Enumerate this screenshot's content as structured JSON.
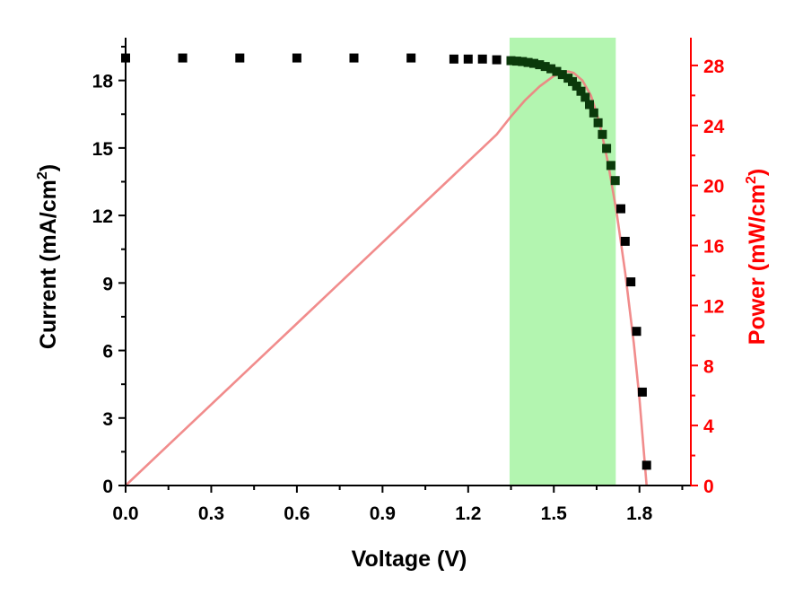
{
  "chart_data": {
    "type": "scatter",
    "xlabel": "Voltage (V)",
    "ylabel": {
      "main": "Current (mA/cm",
      "sup": "2",
      "close": ")"
    },
    "y2label": {
      "main": "Power (mW/cm",
      "sup": "2",
      "close": ")"
    },
    "xlim": [
      0,
      1.98
    ],
    "ylim": [
      0,
      19.9
    ],
    "y2lim": [
      0,
      29.85
    ],
    "xticks": [
      "0.0",
      "0.3",
      "0.6",
      "0.9",
      "1.2",
      "1.5",
      "1.8"
    ],
    "yticks": [
      "0",
      "3",
      "6",
      "9",
      "12",
      "15",
      "18"
    ],
    "y2ticks": [
      "0",
      "4",
      "8",
      "12",
      "16",
      "20",
      "24",
      "28"
    ],
    "highlight_band": {
      "x_start": 1.345,
      "x_end": 1.717,
      "color": "#b3f5b0"
    },
    "series": [
      {
        "name": "Current",
        "axis": "left",
        "color": "#000000",
        "marker": "square",
        "x": [
          0.0,
          0.2,
          0.4,
          0.6,
          0.8,
          1.0,
          1.15,
          1.2,
          1.25,
          1.3,
          1.35,
          1.37,
          1.39,
          1.41,
          1.43,
          1.45,
          1.47,
          1.49,
          1.51,
          1.53,
          1.55,
          1.565,
          1.58,
          1.595,
          1.61,
          1.625,
          1.64,
          1.655,
          1.67,
          1.685,
          1.7,
          1.715,
          1.735,
          1.75,
          1.77,
          1.79,
          1.81,
          1.825
        ],
        "y": [
          19.0,
          19.0,
          19.0,
          19.0,
          19.0,
          19.0,
          18.95,
          18.95,
          18.95,
          18.92,
          18.88,
          18.86,
          18.84,
          18.8,
          18.76,
          18.7,
          18.62,
          18.52,
          18.4,
          18.26,
          18.1,
          17.95,
          17.75,
          17.52,
          17.25,
          16.93,
          16.56,
          16.12,
          15.6,
          14.98,
          14.22,
          13.55,
          12.3,
          10.85,
          9.05,
          6.85,
          4.15,
          0.9
        ]
      },
      {
        "name": "Power",
        "axis": "right",
        "color": "#f08080",
        "marker": "line",
        "x": [
          0.0,
          0.2,
          0.4,
          0.6,
          0.8,
          1.0,
          1.15,
          1.2,
          1.25,
          1.3,
          1.35,
          1.4,
          1.45,
          1.5,
          1.53,
          1.55,
          1.57,
          1.6,
          1.63,
          1.66,
          1.69,
          1.72,
          1.75,
          1.78,
          1.8,
          1.825
        ],
        "y": [
          0.0,
          3.6,
          7.2,
          10.8,
          14.4,
          18.0,
          20.7,
          21.6,
          22.5,
          23.4,
          24.6,
          25.7,
          26.6,
          27.3,
          27.52,
          27.6,
          27.5,
          27.0,
          26.0,
          24.2,
          21.5,
          18.2,
          14.2,
          9.5,
          5.8,
          0.0
        ]
      }
    ]
  }
}
